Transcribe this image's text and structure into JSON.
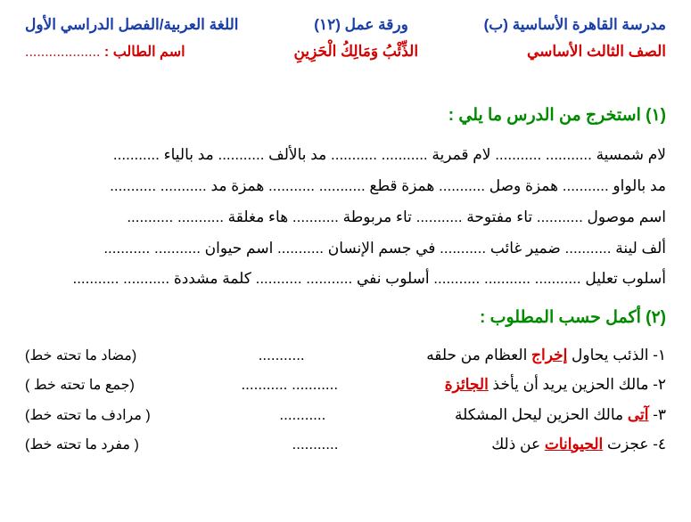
{
  "header": {
    "school": "مدرسة القاهرة الأساسية (ب)",
    "worksheet": "ورقة عمل (١٢)",
    "subject": "اللغة العربية/الفصل الدراسي الأول",
    "grade": "الصف الثالث الأساسي",
    "lesson": "الذِّئْبُ وَمَالِكُ الْحَزِينِ",
    "student_label": "اسم الطالب :",
    "student_dots": "..................."
  },
  "sec1": {
    "title": "(١) استخرج من الدرس ما يلي :",
    "lines": [
      "لام شمسية ........... ...........    لام قمرية ........... ...........   مد بالألف ........... مد بالياء ...........",
      "مد بالواو   ...........   همزة وصل ...........   همزة قطع ........... ...........    همزة مد ........... ...........",
      "اسم موصول ...........   تاء مفتوحة ...........    تاء مربوطة ...........   هاء مغلقة ........... ...........",
      "ألف لينة ...........    ضمير غائب ...........   في جسم الإنسان  ...........  اسم حيوان ........... ...........",
      "أسلوب تعليل ........... ........... ...........    أسلوب نفي ........... ...........      كلمة مشددة ........... ..........."
    ]
  },
  "sec2": {
    "title": "(٢) أكمل حسب المطلوب :",
    "items": [
      {
        "pre": "١- الذئب يحاول ",
        "kw": "إخراج",
        "post": " العظام من حلقه",
        "dots": "...........",
        "note": "(مضاد ما تحته خط)"
      },
      {
        "pre": "٢- مالك الحزين يريد أن يأخذ ",
        "kw": "الجائزة",
        "post": "",
        "dots": "........... ...........",
        "note": "(جمع ما تحته خط )"
      },
      {
        "pre": "٣- ",
        "kw": "آتى",
        "post": " مالك الحزين ليحل المشكلة",
        "dots": "...........",
        "note": "( مرادف ما تحته خط)"
      },
      {
        "pre": "٤- عجزت ",
        "kw": "الحيوانات",
        "post": " عن ذلك",
        "dots": "...........",
        "note": "( مفرد ما تحته خط)"
      }
    ]
  }
}
